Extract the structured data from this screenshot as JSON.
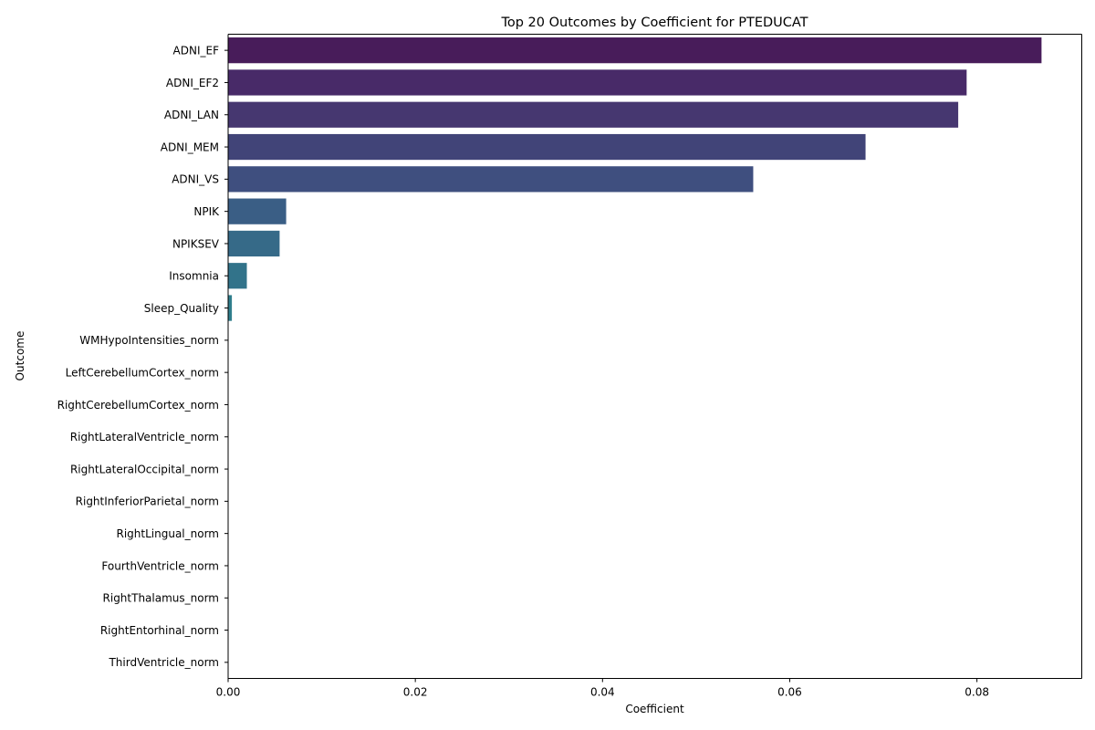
{
  "chart_data": {
    "type": "bar",
    "orientation": "horizontal",
    "title": "Top 20 Outcomes by Coefficient for PTEDUCAT",
    "xlabel": "Coefficient",
    "ylabel": "Outcome",
    "xlim": [
      0,
      0.0912
    ],
    "xticks": [
      "0.00",
      "0.02",
      "0.04",
      "0.06",
      "0.08"
    ],
    "grid": false,
    "categories": [
      "ADNI_EF",
      "ADNI_EF2",
      "ADNI_LAN",
      "ADNI_MEM",
      "ADNI_VS",
      "NPIK",
      "NPIKSEV",
      "Insomnia",
      "Sleep_Quality",
      "WMHypoIntensities_norm",
      "LeftCerebellumCortex_norm",
      "RightCerebellumCortex_norm",
      "RightLateralVentricle_norm",
      "RightLateralOccipital_norm",
      "RightInferiorParietal_norm",
      "RightLingual_norm",
      "FourthVentricle_norm",
      "RightThalamus_norm",
      "RightEntorhinal_norm",
      "ThirdVentricle_norm"
    ],
    "values": [
      0.0869,
      0.0789,
      0.078,
      0.0681,
      0.0561,
      0.0062,
      0.0055,
      0.002,
      0.0004,
      0.0,
      0.0,
      0.0,
      0.0,
      0.0,
      0.0,
      0.0,
      0.0,
      0.0,
      0.0,
      0.0
    ],
    "colors": [
      "#481c5a",
      "#482a68",
      "#463770",
      "#414478",
      "#3f4f7f",
      "#3a5e85",
      "#366a88",
      "#32738a",
      "#2f7e8c",
      "#2c878d",
      "#29928d",
      "#259c8b",
      "#22a688",
      "#28b083",
      "#36ba7c",
      "#4cc373",
      "#66cc66",
      "#85d358",
      "#a6da48",
      "#c8e03a"
    ]
  }
}
